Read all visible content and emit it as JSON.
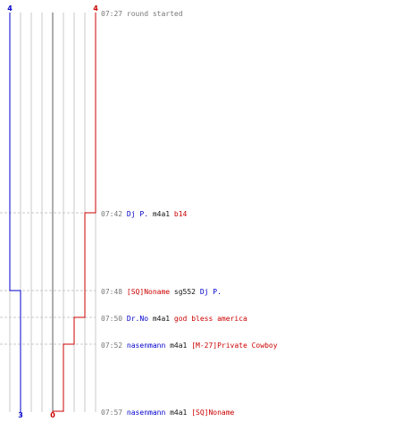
{
  "chart_data": {
    "type": "line",
    "colors": {
      "blue_team": "#0000cc",
      "red_team": "#cc0000",
      "neutral": "#111111",
      "time": "#777777",
      "grid": "#c8c8c8",
      "center_line": "#777777",
      "dashed": "#c8c8c8"
    },
    "x_axis": {
      "min": -4,
      "max": 4,
      "ticks": [
        -4,
        -3,
        -2,
        -1,
        0,
        1,
        2,
        3,
        4
      ]
    },
    "top_labels": {
      "blue": "4",
      "red": "4"
    },
    "bottom_labels": {
      "blue": "3",
      "red": "0"
    },
    "series": [
      {
        "values": [
          4,
          4,
          3,
          3
        ],
        "color": "#0000cc"
      },
      {
        "values": [
          4,
          3,
          2,
          1,
          0
        ],
        "color": "#cc0000"
      }
    ],
    "events": [
      {
        "time": "07:27",
        "items": [
          {
            "text": "round started",
            "role": "time"
          }
        ]
      },
      {
        "time": "07:42",
        "items": [
          {
            "text": "Dj P.",
            "role": "blue_team"
          },
          {
            "text": " m4a1 ",
            "role": "neutral"
          },
          {
            "text": "b14",
            "role": "red_team"
          }
        ]
      },
      {
        "time": "07:48",
        "items": [
          {
            "text": "[SQ]Noname",
            "role": "red_team"
          },
          {
            "text": " sg552 ",
            "role": "neutral"
          },
          {
            "text": "Dj P.",
            "role": "blue_team"
          }
        ]
      },
      {
        "time": "07:50",
        "items": [
          {
            "text": "Dr.No",
            "role": "blue_team"
          },
          {
            "text": " m4a1 ",
            "role": "neutral"
          },
          {
            "text": "god bless america",
            "role": "red_team"
          }
        ]
      },
      {
        "time": "07:52",
        "items": [
          {
            "text": "nasenmann",
            "role": "blue_team"
          },
          {
            "text": " m4a1 ",
            "role": "neutral"
          },
          {
            "text": "[M-27]Private Cowboy",
            "role": "red_team"
          }
        ]
      },
      {
        "time": "07:57",
        "items": [
          {
            "text": "nasenmann",
            "role": "blue_team"
          },
          {
            "text": " m4a1 ",
            "role": "neutral"
          },
          {
            "text": "[SQ]Noname",
            "role": "red_team"
          }
        ]
      }
    ]
  }
}
